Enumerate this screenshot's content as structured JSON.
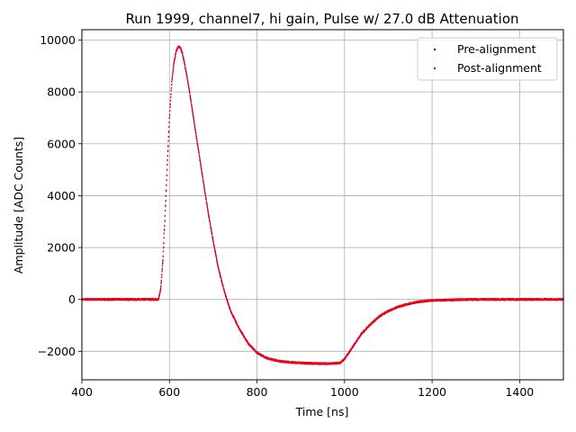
{
  "chart_data": {
    "type": "scatter",
    "title": "Run 1999, channel7, hi gain, Pulse w/ 27.0 dB Attenuation",
    "xlabel": "Time [ns]",
    "ylabel": "Amplitude [ADC Counts]",
    "xlim": [
      400,
      1500
    ],
    "ylim": [
      -3100,
      10400
    ],
    "xticks": [
      400,
      600,
      800,
      1000,
      1200,
      1400
    ],
    "xtick_labels": [
      "400",
      "600",
      "800",
      "1000",
      "1200",
      "1400"
    ],
    "yticks": [
      -2000,
      0,
      2000,
      4000,
      6000,
      8000,
      10000
    ],
    "ytick_labels": [
      "−2000",
      "0",
      "2000",
      "4000",
      "6000",
      "8000",
      "10000"
    ],
    "grid": true,
    "legend_position": "top-right",
    "series": [
      {
        "name": "Pre-alignment",
        "color": "#0000ff",
        "x": [
          400,
          500,
          570,
          575,
          580,
          585,
          590,
          595,
          600,
          605,
          610,
          615,
          620,
          625,
          630,
          635,
          640,
          645,
          650,
          660,
          670,
          680,
          690,
          700,
          710,
          720,
          730,
          740,
          760,
          780,
          800,
          820,
          850,
          880,
          900,
          930,
          960,
          990,
          1000,
          1020,
          1040,
          1060,
          1080,
          1100,
          1120,
          1140,
          1160,
          1180,
          1200,
          1250,
          1300,
          1400,
          1500
        ],
        "y": [
          0,
          0,
          0,
          0,
          400,
          1500,
          3200,
          5200,
          7000,
          8300,
          9100,
          9550,
          9750,
          9700,
          9450,
          9050,
          8600,
          8100,
          7550,
          6450,
          5350,
          4250,
          3200,
          2250,
          1350,
          650,
          50,
          -450,
          -1150,
          -1700,
          -2050,
          -2250,
          -2380,
          -2430,
          -2450,
          -2470,
          -2480,
          -2450,
          -2300,
          -1800,
          -1300,
          -950,
          -650,
          -450,
          -300,
          -200,
          -120,
          -70,
          -40,
          -15,
          0,
          0,
          0
        ]
      },
      {
        "name": "Post-alignment",
        "color": "#ff0000",
        "x": [
          400,
          500,
          570,
          575,
          580,
          585,
          590,
          595,
          600,
          605,
          610,
          615,
          620,
          625,
          630,
          635,
          640,
          645,
          650,
          660,
          670,
          680,
          690,
          700,
          710,
          720,
          730,
          740,
          760,
          780,
          800,
          820,
          850,
          880,
          900,
          930,
          960,
          990,
          1000,
          1020,
          1040,
          1060,
          1080,
          1100,
          1120,
          1140,
          1160,
          1180,
          1200,
          1250,
          1300,
          1400,
          1500
        ],
        "y": [
          0,
          0,
          0,
          0,
          400,
          1500,
          3200,
          5200,
          7000,
          8300,
          9100,
          9550,
          9750,
          9700,
          9450,
          9050,
          8600,
          8100,
          7550,
          6450,
          5350,
          4250,
          3200,
          2250,
          1350,
          650,
          50,
          -450,
          -1150,
          -1700,
          -2050,
          -2250,
          -2380,
          -2430,
          -2450,
          -2470,
          -2480,
          -2450,
          -2300,
          -1800,
          -1300,
          -950,
          -650,
          -450,
          -300,
          -200,
          -120,
          -70,
          -40,
          -15,
          0,
          0,
          0
        ]
      }
    ]
  }
}
